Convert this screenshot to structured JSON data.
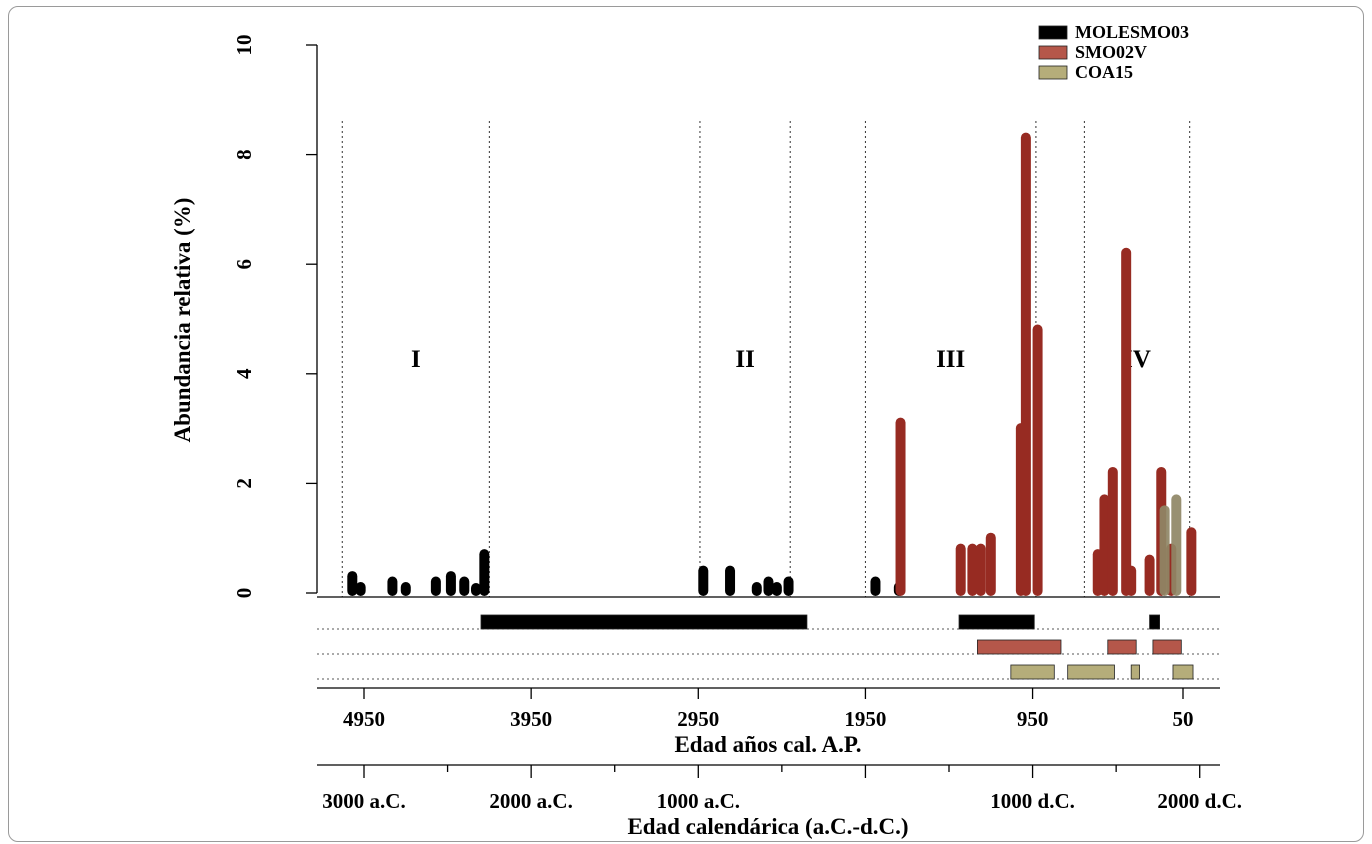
{
  "chart_data": {
    "type": "bar",
    "ylabel": "Abundancia relativa (%)",
    "ylim": [
      0,
      10
    ],
    "yticks": [
      "0",
      "2",
      "4",
      "6",
      "8",
      "10"
    ],
    "xlabel": "Edad años cal. A.P.",
    "xlim_bp": [
      5100,
      -50
    ],
    "xticks_bp": [
      "4950",
      "3950",
      "2950",
      "1950",
      "950",
      "50"
    ],
    "xlabel_calendar": "Edad calendárica (a.C.-d.C.)",
    "xticks_calendar": [
      "3000 a.C.",
      "2000 a.C.",
      "1000 a.C.",
      "1000 d.C.",
      "2000 d.C."
    ],
    "grid": false,
    "legend_position": "top-right",
    "series": [
      {
        "name": "MOLESMO03",
        "color": "#000000",
        "points": [
          {
            "age": 5020,
            "value": 0.4
          },
          {
            "age": 4970,
            "value": 0.2
          },
          {
            "age": 4780,
            "value": 0.3
          },
          {
            "age": 4700,
            "value": 0.2
          },
          {
            "age": 4520,
            "value": 0.3
          },
          {
            "age": 4430,
            "value": 0.4
          },
          {
            "age": 4350,
            "value": 0.3
          },
          {
            "age": 4280,
            "value": 0.1
          },
          {
            "age": 4230,
            "value": 0.8
          },
          {
            "age": 2920,
            "value": 0.5
          },
          {
            "age": 2760,
            "value": 0.5
          },
          {
            "age": 2600,
            "value": 0.2
          },
          {
            "age": 2530,
            "value": 0.3
          },
          {
            "age": 2480,
            "value": 0.2
          },
          {
            "age": 2410,
            "value": 0.3
          },
          {
            "age": 1890,
            "value": 0.3
          },
          {
            "age": 1750,
            "value": 0.2
          }
        ],
        "age_range": [
          [
            4250,
            2300
          ],
          [
            1390,
            940
          ],
          [
            250,
            190
          ]
        ]
      },
      {
        "name": "SMO02V",
        "color": "#972b22",
        "points": [
          {
            "age": 1740,
            "value": 3.2
          },
          {
            "age": 1380,
            "value": 0.9
          },
          {
            "age": 1310,
            "value": 0.9
          },
          {
            "age": 1260,
            "value": 0.9
          },
          {
            "age": 1200,
            "value": 1.1
          },
          {
            "age": 1020,
            "value": 3.1
          },
          {
            "age": 990,
            "value": 8.4
          },
          {
            "age": 920,
            "value": 4.9
          },
          {
            "age": 560,
            "value": 0.8
          },
          {
            "age": 520,
            "value": 1.8
          },
          {
            "age": 470,
            "value": 2.3
          },
          {
            "age": 390,
            "value": 6.3
          },
          {
            "age": 360,
            "value": 0.5
          },
          {
            "age": 250,
            "value": 0.7
          },
          {
            "age": 180,
            "value": 2.3
          },
          {
            "age": 120,
            "value": 0.9
          },
          {
            "age": 0,
            "value": 1.2
          }
        ],
        "age_range": [
          [
            1280,
            780
          ],
          [
            500,
            330
          ],
          [
            230,
            60
          ]
        ]
      },
      {
        "name": "COA15",
        "color": "#a8a170",
        "points": [
          {
            "age": 160,
            "value": 1.6
          },
          {
            "age": 90,
            "value": 1.8
          }
        ],
        "age_range": [
          [
            1080,
            820
          ],
          [
            740,
            460
          ],
          [
            360,
            310
          ],
          [
            110,
            -10
          ]
        ]
      }
    ],
    "zones": [
      "I",
      "II",
      "III",
      "IV"
    ],
    "zone_boundaries_bp": [
      5080,
      4200,
      2940,
      2400,
      1950,
      930,
      640,
      10
    ]
  },
  "legend": {
    "items": [
      {
        "label": "MOLESMO03",
        "swatch": "#000000"
      },
      {
        "label": "SMO02V",
        "swatch": "#b5574a"
      },
      {
        "label": "COA15",
        "swatch": "#b5ad7a"
      }
    ]
  }
}
